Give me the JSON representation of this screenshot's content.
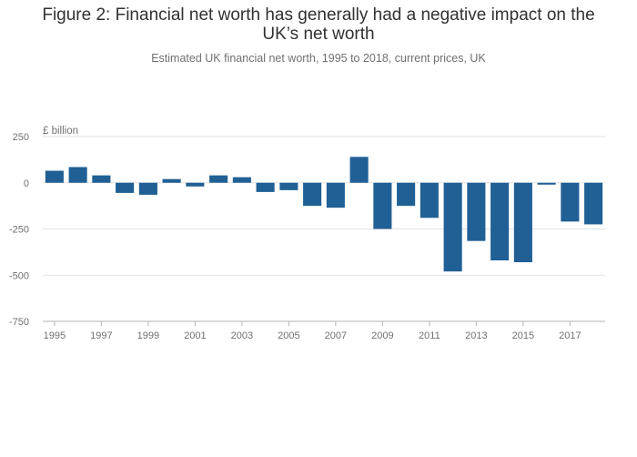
{
  "title_line1": "Figure 2: Financial net worth has generally had a negative impact on the",
  "title_line2": "UK’s net worth",
  "subtitle": "Estimated UK financial net worth, 1995 to 2018, current prices, UK",
  "chart_data": {
    "type": "bar",
    "unit_label": "£ billion",
    "categories": [
      "1995",
      "1996",
      "1997",
      "1998",
      "1999",
      "2000",
      "2001",
      "2002",
      "2003",
      "2004",
      "2005",
      "2006",
      "2007",
      "2008",
      "2009",
      "2010",
      "2011",
      "2012",
      "2013",
      "2014",
      "2015",
      "2016",
      "2017",
      "2018"
    ],
    "values": [
      65,
      85,
      40,
      -55,
      -65,
      20,
      -20,
      40,
      30,
      -50,
      -40,
      -125,
      -135,
      140,
      -250,
      -125,
      -190,
      -480,
      -315,
      -420,
      -430,
      -10,
      -210,
      -225
    ],
    "x_tick_labels": [
      "1995",
      "1997",
      "1999",
      "2001",
      "2003",
      "2005",
      "2007",
      "2009",
      "2011",
      "2013",
      "2015",
      "2017"
    ],
    "y_ticks": [
      250,
      0,
      -250,
      -500,
      -750
    ],
    "ylim": [
      -750,
      250
    ],
    "bar_color": "#206095",
    "grid": true
  }
}
